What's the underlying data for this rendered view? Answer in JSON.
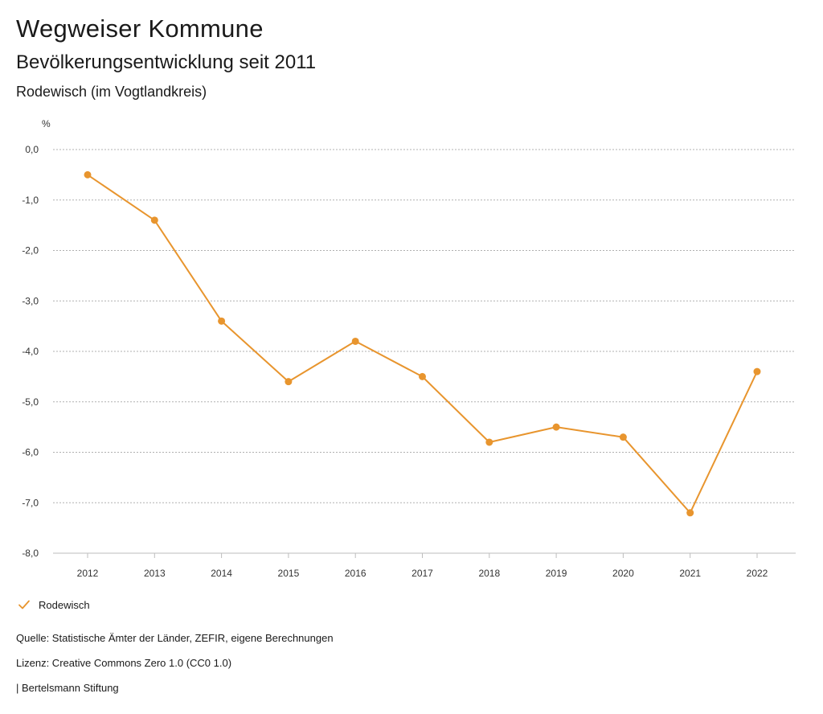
{
  "header": {
    "title": "Wegweiser Kommune",
    "subtitle": "Bevölkerungsentwicklung seit 2011",
    "region": "Rodewisch (im Vogtlandkreis)"
  },
  "chart_data": {
    "type": "line",
    "title": "Bevölkerungsentwicklung seit 2011",
    "xlabel": "",
    "ylabel": "%",
    "x": [
      "2012",
      "2013",
      "2014",
      "2015",
      "2016",
      "2017",
      "2018",
      "2019",
      "2020",
      "2021",
      "2022"
    ],
    "series": [
      {
        "name": "Rodewisch",
        "color": "#e8952e",
        "values": [
          -0.5,
          -1.4,
          -3.4,
          -4.6,
          -3.8,
          -4.5,
          -5.8,
          -5.5,
          -5.7,
          -7.2,
          -4.4
        ]
      }
    ],
    "ylim": [
      -8.0,
      0.0
    ],
    "yticks": [
      0,
      -1,
      -2,
      -3,
      -4,
      -5,
      -6,
      -7,
      -8
    ],
    "ytick_labels": [
      "0,0",
      "-1,0",
      "-2,0",
      "-3,0",
      "-4,0",
      "-5,0",
      "-6,0",
      "-7,0",
      "-8,0"
    ],
    "grid": true,
    "legend_position": "bottom-left"
  },
  "legend": {
    "label": "Rodewisch",
    "icon": "check-icon",
    "color": "#e8952e"
  },
  "footer": {
    "source": "Quelle: Statistische Ämter der Länder, ZEFIR, eigene Berechnungen",
    "license": "Lizenz: Creative Commons Zero 1.0 (CC0 1.0)",
    "brand": "| Bertelsmann Stiftung"
  }
}
